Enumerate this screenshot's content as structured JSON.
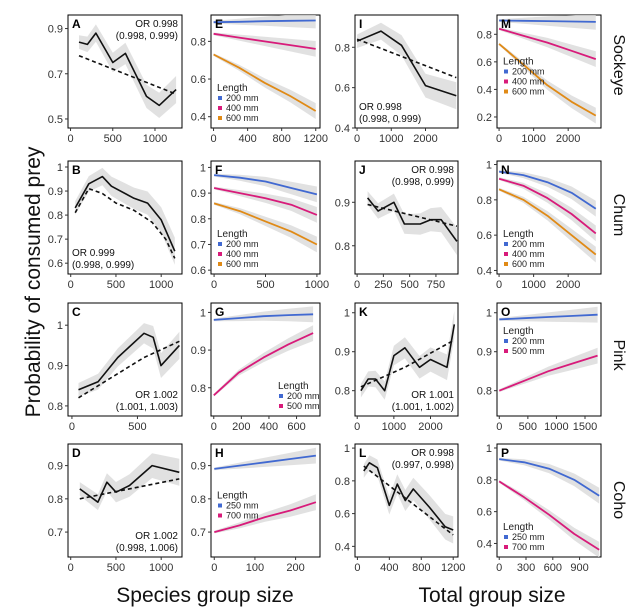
{
  "figure": {
    "y_title": "Probability of consumed prey",
    "x_titles": [
      "Species group size",
      "Total group size"
    ],
    "strips": [
      "Sockeye",
      "Chum",
      "Pink",
      "Coho"
    ],
    "legend_title": "Length",
    "colors": {
      "s200": "#4169d1",
      "s250": "#4169d1",
      "s400": "#d81b7a",
      "s500": "#d81b7a",
      "s700": "#d81b7a",
      "s600": "#e08a16",
      "ci": "#d9d9d9",
      "line": "#111111"
    }
  },
  "chart_data": [
    {
      "id": "A",
      "type": "line",
      "xticks": [
        0,
        500,
        1000
      ],
      "yticks": [
        0.5,
        0.7,
        0.9
      ],
      "xlim": [
        -30,
        1320
      ],
      "ylim": [
        0.46,
        0.96
      ],
      "annotation": [
        "OR 0.998",
        "(0.998, 0.999)"
      ],
      "annotation_pos": "top-right",
      "observed": {
        "x": [
          100,
          200,
          300,
          500,
          650,
          900,
          1050,
          1250
        ],
        "y": [
          0.84,
          0.83,
          0.88,
          0.75,
          0.79,
          0.6,
          0.56,
          0.63
        ]
      },
      "fit": {
        "x": [
          100,
          1250
        ],
        "y": [
          0.78,
          0.61
        ]
      }
    },
    {
      "id": "E",
      "type": "line",
      "xticks": [
        0,
        400,
        800,
        1200
      ],
      "yticks": [
        0.4,
        0.6,
        0.8
      ],
      "xlim": [
        -30,
        1250
      ],
      "ylim": [
        0.34,
        0.94
      ],
      "legend": {
        "entries": [
          "200 mm",
          "400 mm",
          "600 mm"
        ],
        "pos": "bottom-left"
      },
      "series": [
        {
          "name": "200 mm",
          "color_key": "s200",
          "y": [
            0.902,
            0.904,
            0.907,
            0.909,
            0.911
          ]
        },
        {
          "name": "400 mm",
          "color_key": "s400",
          "y": [
            0.84,
            0.82,
            0.8,
            0.78,
            0.76
          ]
        },
        {
          "name": "600 mm",
          "color_key": "s600",
          "y": [
            0.73,
            0.66,
            0.58,
            0.51,
            0.43
          ]
        }
      ],
      "x": [
        0,
        300,
        600,
        900,
        1200
      ]
    },
    {
      "id": "I",
      "type": "line",
      "xticks": [
        0,
        1000,
        2000
      ],
      "yticks": [
        0.4,
        0.6,
        0.8
      ],
      "xlim": [
        -60,
        2950
      ],
      "ylim": [
        0.4,
        0.96
      ],
      "annotation": [
        "OR 0.998",
        "(0.998, 0.999)"
      ],
      "annotation_pos": "bottom-left",
      "observed": {
        "x": [
          0,
          700,
          1300,
          2000,
          2900
        ],
        "y": [
          0.83,
          0.88,
          0.81,
          0.61,
          0.56
        ]
      },
      "fit": {
        "x": [
          0,
          2900
        ],
        "y": [
          0.84,
          0.65
        ]
      }
    },
    {
      "id": "M",
      "type": "line",
      "xticks": [
        0,
        1000,
        2000
      ],
      "yticks": [
        0.2,
        0.4,
        0.6,
        0.8
      ],
      "xlim": [
        -60,
        2950
      ],
      "ylim": [
        0.12,
        0.94
      ],
      "legend": {
        "entries": [
          "200 mm",
          "400 mm",
          "600 mm"
        ],
        "pos": "middle-left"
      },
      "series": [
        {
          "name": "200 mm",
          "color_key": "s200",
          "y": [
            0.9,
            0.898,
            0.896,
            0.893,
            0.89
          ]
        },
        {
          "name": "400 mm",
          "color_key": "s400",
          "y": [
            0.84,
            0.79,
            0.74,
            0.68,
            0.62
          ]
        },
        {
          "name": "600 mm",
          "color_key": "s600",
          "y": [
            0.73,
            0.58,
            0.43,
            0.31,
            0.21
          ]
        }
      ],
      "x": [
        0,
        700,
        1400,
        2100,
        2800
      ]
    },
    {
      "id": "B",
      "type": "line",
      "xticks": [
        0,
        500,
        1000
      ],
      "yticks": [
        0.6,
        0.7,
        0.8,
        0.9,
        1.0
      ],
      "xlim": [
        -30,
        1230
      ],
      "ylim": [
        0.555,
        1.025
      ],
      "annotation": [
        "OR 0.999",
        "(0.998, 0.999)"
      ],
      "annotation_pos": "bottom-left",
      "observed": {
        "x": [
          50,
          200,
          350,
          450,
          700,
          850,
          1000,
          1150
        ],
        "y": [
          0.83,
          0.93,
          0.96,
          0.92,
          0.87,
          0.85,
          0.78,
          0.65
        ]
      },
      "fit": {
        "x": [
          50,
          200,
          350,
          500,
          700,
          900,
          1050,
          1150
        ],
        "y": [
          0.81,
          0.91,
          0.89,
          0.85,
          0.82,
          0.77,
          0.7,
          0.62
        ]
      }
    },
    {
      "id": "F",
      "type": "line",
      "xticks": [
        0,
        500,
        1000
      ],
      "yticks": [
        0.6,
        0.7,
        0.8,
        0.9,
        1.0
      ],
      "xlim": [
        -30,
        1030
      ],
      "ylim": [
        0.585,
        1.025
      ],
      "legend": {
        "entries": [
          "200 mm",
          "400 mm",
          "600 mm"
        ],
        "pos": "bottom-left"
      },
      "series": [
        {
          "name": "200 mm",
          "color_key": "s200",
          "y": [
            0.97,
            0.96,
            0.945,
            0.92,
            0.895
          ]
        },
        {
          "name": "400 mm",
          "color_key": "s400",
          "y": [
            0.92,
            0.9,
            0.88,
            0.855,
            0.815
          ]
        },
        {
          "name": "600 mm",
          "color_key": "s600",
          "y": [
            0.86,
            0.83,
            0.79,
            0.75,
            0.7
          ]
        }
      ],
      "x": [
        0,
        250,
        500,
        750,
        1000
      ]
    },
    {
      "id": "J",
      "type": "line",
      "xticks": [
        0,
        250,
        500,
        750
      ],
      "yticks": [
        0.8,
        0.9
      ],
      "xlim": [
        -20,
        960
      ],
      "ylim": [
        0.735,
        0.995
      ],
      "annotation": [
        "OR 0.998",
        "(0.998, 0.999)"
      ],
      "annotation_pos": "top-right",
      "observed": {
        "x": [
          100,
          200,
          350,
          450,
          600,
          700,
          800,
          950
        ],
        "y": [
          0.91,
          0.88,
          0.9,
          0.85,
          0.85,
          0.86,
          0.86,
          0.81
        ]
      },
      "fit": {
        "x": [
          100,
          950
        ],
        "y": [
          0.895,
          0.845
        ]
      }
    },
    {
      "id": "N",
      "type": "line",
      "xticks": [
        0,
        1000,
        2000
      ],
      "yticks": [
        0.4,
        0.6,
        0.8,
        1.0
      ],
      "xlim": [
        -60,
        2950
      ],
      "ylim": [
        0.38,
        1.02
      ],
      "legend": {
        "entries": [
          "200 mm",
          "400 mm",
          "600 mm"
        ],
        "pos": "bottom-left"
      },
      "series": [
        {
          "name": "200 mm",
          "color_key": "s200",
          "y": [
            0.96,
            0.94,
            0.9,
            0.84,
            0.75
          ]
        },
        {
          "name": "400 mm",
          "color_key": "s400",
          "y": [
            0.92,
            0.88,
            0.81,
            0.72,
            0.61
          ]
        },
        {
          "name": "600 mm",
          "color_key": "s600",
          "y": [
            0.86,
            0.8,
            0.71,
            0.6,
            0.49
          ]
        }
      ],
      "x": [
        0,
        700,
        1400,
        2100,
        2800
      ]
    },
    {
      "id": "C",
      "type": "line",
      "xticks": [
        0,
        500
      ],
      "yticks": [
        0.8,
        0.9,
        1.0
      ],
      "xlim": [
        -30,
        840
      ],
      "ylim": [
        0.775,
        1.055
      ],
      "annotation": [
        "OR 1.002",
        "(1.001, 1.003)"
      ],
      "annotation_pos": "bottom-right",
      "observed": {
        "x": [
          50,
          200,
          350,
          550,
          620,
          680,
          820
        ],
        "y": [
          0.84,
          0.86,
          0.92,
          0.98,
          0.97,
          0.9,
          0.95
        ]
      },
      "fit": {
        "x": [
          50,
          300,
          550,
          820
        ],
        "y": [
          0.82,
          0.87,
          0.92,
          0.96
        ]
      }
    },
    {
      "id": "G",
      "type": "line",
      "xticks": [
        0,
        200,
        400,
        600
      ],
      "yticks": [
        0.8,
        0.9,
        1.0
      ],
      "xlim": [
        -20,
        770
      ],
      "ylim": [
        0.725,
        1.025
      ],
      "legend": {
        "entries": [
          "200 mm",
          "500 mm"
        ],
        "pos": "bottom-right"
      },
      "series": [
        {
          "name": "200 mm",
          "color_key": "s200",
          "y": [
            0.98,
            0.985,
            0.99,
            0.993,
            0.995
          ]
        },
        {
          "name": "500 mm",
          "color_key": "s500",
          "y": [
            0.78,
            0.84,
            0.88,
            0.915,
            0.945
          ]
        }
      ],
      "x": [
        0,
        180,
        360,
        540,
        720
      ]
    },
    {
      "id": "K",
      "type": "line",
      "xticks": [
        0,
        1000,
        2000
      ],
      "yticks": [
        0.8,
        0.9,
        1.0
      ],
      "xlim": [
        -60,
        2750
      ],
      "ylim": [
        0.735,
        1.025
      ],
      "annotation": [
        "OR 1.001",
        "(1.001, 1.002)"
      ],
      "annotation_pos": "bottom-right",
      "observed": {
        "x": [
          100,
          300,
          500,
          750,
          1000,
          1300,
          1700,
          2000,
          2450,
          2650
        ],
        "y": [
          0.8,
          0.83,
          0.83,
          0.8,
          0.89,
          0.91,
          0.86,
          0.88,
          0.86,
          0.97
        ]
      },
      "fit": {
        "x": [
          100,
          1300,
          2650
        ],
        "y": [
          0.81,
          0.86,
          0.93
        ]
      }
    },
    {
      "id": "O",
      "type": "line",
      "xticks": [
        0,
        500,
        1000,
        1500
      ],
      "yticks": [
        0.8,
        0.9,
        1.0
      ],
      "xlim": [
        -40,
        1780
      ],
      "ylim": [
        0.735,
        1.025
      ],
      "legend": {
        "entries": [
          "200 mm",
          "500 mm"
        ],
        "pos": "top-left"
      },
      "series": [
        {
          "name": "200 mm",
          "color_key": "s200",
          "y": [
            0.983,
            0.986,
            0.989,
            0.992,
            0.995
          ]
        },
        {
          "name": "500 mm",
          "color_key": "s500",
          "y": [
            0.8,
            0.825,
            0.85,
            0.87,
            0.89
          ]
        }
      ],
      "x": [
        0,
        430,
        860,
        1290,
        1720
      ]
    },
    {
      "id": "D",
      "type": "line",
      "xticks": [
        0,
        500,
        1000
      ],
      "yticks": [
        0.7,
        0.8,
        0.9
      ],
      "xlim": [
        -30,
        1230
      ],
      "ylim": [
        0.625,
        0.965
      ],
      "annotation": [
        "OR 1.002",
        "(0.998, 1.006)"
      ],
      "annotation_pos": "bottom-right",
      "observed": {
        "x": [
          100,
          300,
          400,
          500,
          650,
          900,
          1200
        ],
        "y": [
          0.83,
          0.79,
          0.85,
          0.82,
          0.84,
          0.9,
          0.88
        ]
      },
      "fit": {
        "x": [
          100,
          1200
        ],
        "y": [
          0.8,
          0.86
        ]
      }
    },
    {
      "id": "H",
      "type": "line",
      "xticks": [
        0,
        100,
        200
      ],
      "yticks": [
        0.7,
        0.8,
        0.9
      ],
      "xlim": [
        -8,
        260
      ],
      "ylim": [
        0.625,
        0.965
      ],
      "legend": {
        "entries": [
          "250 mm",
          "700 mm"
        ],
        "pos": "middle-left"
      },
      "series": [
        {
          "name": "250 mm",
          "color_key": "s250",
          "y": [
            0.89,
            0.9,
            0.91,
            0.92,
            0.93
          ]
        },
        {
          "name": "700 mm",
          "color_key": "s700",
          "y": [
            0.7,
            0.72,
            0.745,
            0.765,
            0.79
          ]
        }
      ],
      "x": [
        0,
        62,
        125,
        187,
        250
      ]
    },
    {
      "id": "L",
      "type": "line",
      "xticks": [
        0,
        400,
        800,
        1200
      ],
      "yticks": [
        0.4,
        0.6,
        0.8,
        1.0
      ],
      "xlim": [
        -30,
        1260
      ],
      "ylim": [
        0.335,
        1.025
      ],
      "annotation": [
        "OR 0.998",
        "(0.997, 0.998)"
      ],
      "annotation_pos": "top-right",
      "observed": {
        "x": [
          80,
          150,
          250,
          400,
          500,
          600,
          700,
          900,
          1100,
          1200
        ],
        "y": [
          0.86,
          0.91,
          0.88,
          0.65,
          0.78,
          0.68,
          0.75,
          0.64,
          0.52,
          0.5
        ]
      },
      "fit": {
        "x": [
          80,
          1200
        ],
        "y": [
          0.89,
          0.47
        ]
      }
    },
    {
      "id": "P",
      "type": "line",
      "xticks": [
        0,
        300,
        600,
        900
      ],
      "yticks": [
        0.4,
        0.6,
        0.8,
        1.0
      ],
      "xlim": [
        -25,
        1140
      ],
      "ylim": [
        0.315,
        1.025
      ],
      "legend": {
        "entries": [
          "250 mm",
          "700 mm"
        ],
        "pos": "bottom-left"
      },
      "series": [
        {
          "name": "250 mm",
          "color_key": "s250",
          "y": [
            0.93,
            0.91,
            0.87,
            0.8,
            0.7
          ]
        },
        {
          "name": "700 mm",
          "color_key": "s700",
          "y": [
            0.79,
            0.69,
            0.58,
            0.46,
            0.36
          ]
        }
      ],
      "x": [
        0,
        280,
        560,
        840,
        1120
      ]
    }
  ]
}
